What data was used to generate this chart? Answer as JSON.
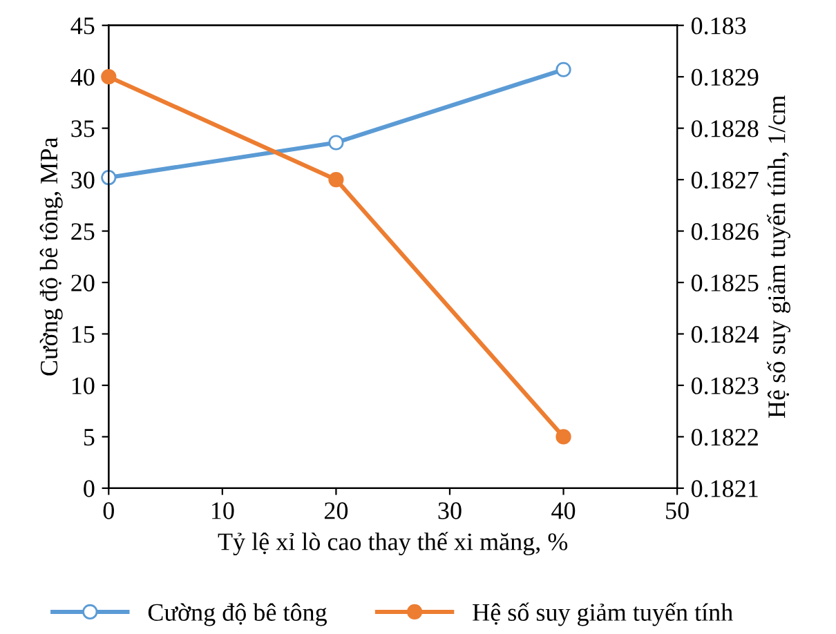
{
  "chart_data": {
    "type": "line",
    "xlabel": "Tỷ lệ xỉ lò cao thay thế xi măng, %",
    "ylabel": "Cường độ bê tông, MPa",
    "y2label": "Hệ số suy giảm tuyến tính, 1/cm",
    "x": [
      0,
      20,
      40
    ],
    "series": [
      {
        "name": "Cường độ bê tông",
        "color": "#5b9bd5",
        "values": [
          30.2,
          33.6,
          40.7
        ]
      },
      {
        "name": "Hệ số suy giảm tuyến tính",
        "color": "#ed7d31",
        "values": [
          0.1829,
          0.1827,
          0.1822
        ],
        "axis": "y2"
      }
    ],
    "xlim": [
      0,
      50
    ],
    "xticks": [
      0,
      10,
      20,
      30,
      40,
      50
    ],
    "ylim": [
      0,
      45
    ],
    "yticks": [
      0,
      5,
      10,
      15,
      20,
      25,
      30,
      35,
      40,
      45
    ],
    "y2lim": [
      0.1821,
      0.183
    ],
    "y2ticks": [
      0.1821,
      0.1822,
      0.1823,
      0.1824,
      0.1825,
      0.1826,
      0.1827,
      0.1828,
      0.1829,
      0.183
    ],
    "marker": "circle",
    "line_style": "solid",
    "grid": false,
    "legend": "bottom"
  }
}
